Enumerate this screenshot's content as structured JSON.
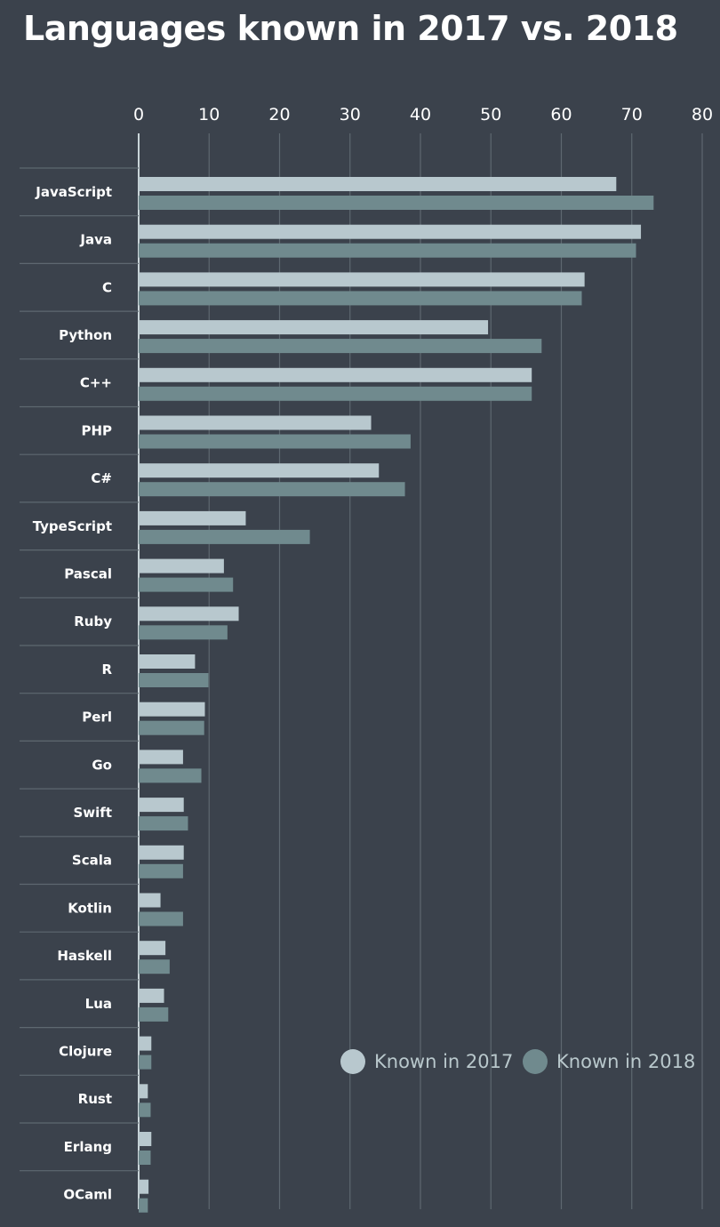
{
  "colors": {
    "background": "#3b424c",
    "series_2017": "#b8c8ce",
    "series_2018": "#708a8e",
    "grid": "#5e6870",
    "row_divider": "#5e6870",
    "text": "#ffffff",
    "legend_text": "#b9c8cc"
  },
  "chart_data": {
    "type": "bar",
    "orientation": "horizontal",
    "title": "Languages known in 2017 vs. 2018",
    "xlim": [
      0,
      80
    ],
    "xticks": [
      0,
      10,
      20,
      30,
      40,
      50,
      60,
      70,
      80
    ],
    "grid": true,
    "legend_position": "bottom-right",
    "categories": [
      "JavaScript",
      "Java",
      "C",
      "Python",
      "C++",
      "PHP",
      "C#",
      "TypeScript",
      "Pascal",
      "Ruby",
      "R",
      "Perl",
      "Go",
      "Swift",
      "Scala",
      "Kotlin",
      "Haskell",
      "Lua",
      "Clojure",
      "Rust",
      "Erlang",
      "OCaml"
    ],
    "series": [
      {
        "name": "Known in 2017",
        "values": [
          67.8,
          71.3,
          63.3,
          49.6,
          55.8,
          33.0,
          34.1,
          15.2,
          12.1,
          14.2,
          8.0,
          9.4,
          6.3,
          6.4,
          6.4,
          3.1,
          3.8,
          3.6,
          1.8,
          1.3,
          1.8,
          1.4
        ]
      },
      {
        "name": "Known in 2018",
        "values": [
          73.1,
          70.6,
          62.9,
          57.2,
          55.8,
          38.6,
          37.8,
          24.3,
          13.4,
          12.6,
          9.9,
          9.3,
          8.9,
          7.0,
          6.3,
          6.3,
          4.4,
          4.2,
          1.8,
          1.7,
          1.7,
          1.3
        ]
      }
    ]
  }
}
